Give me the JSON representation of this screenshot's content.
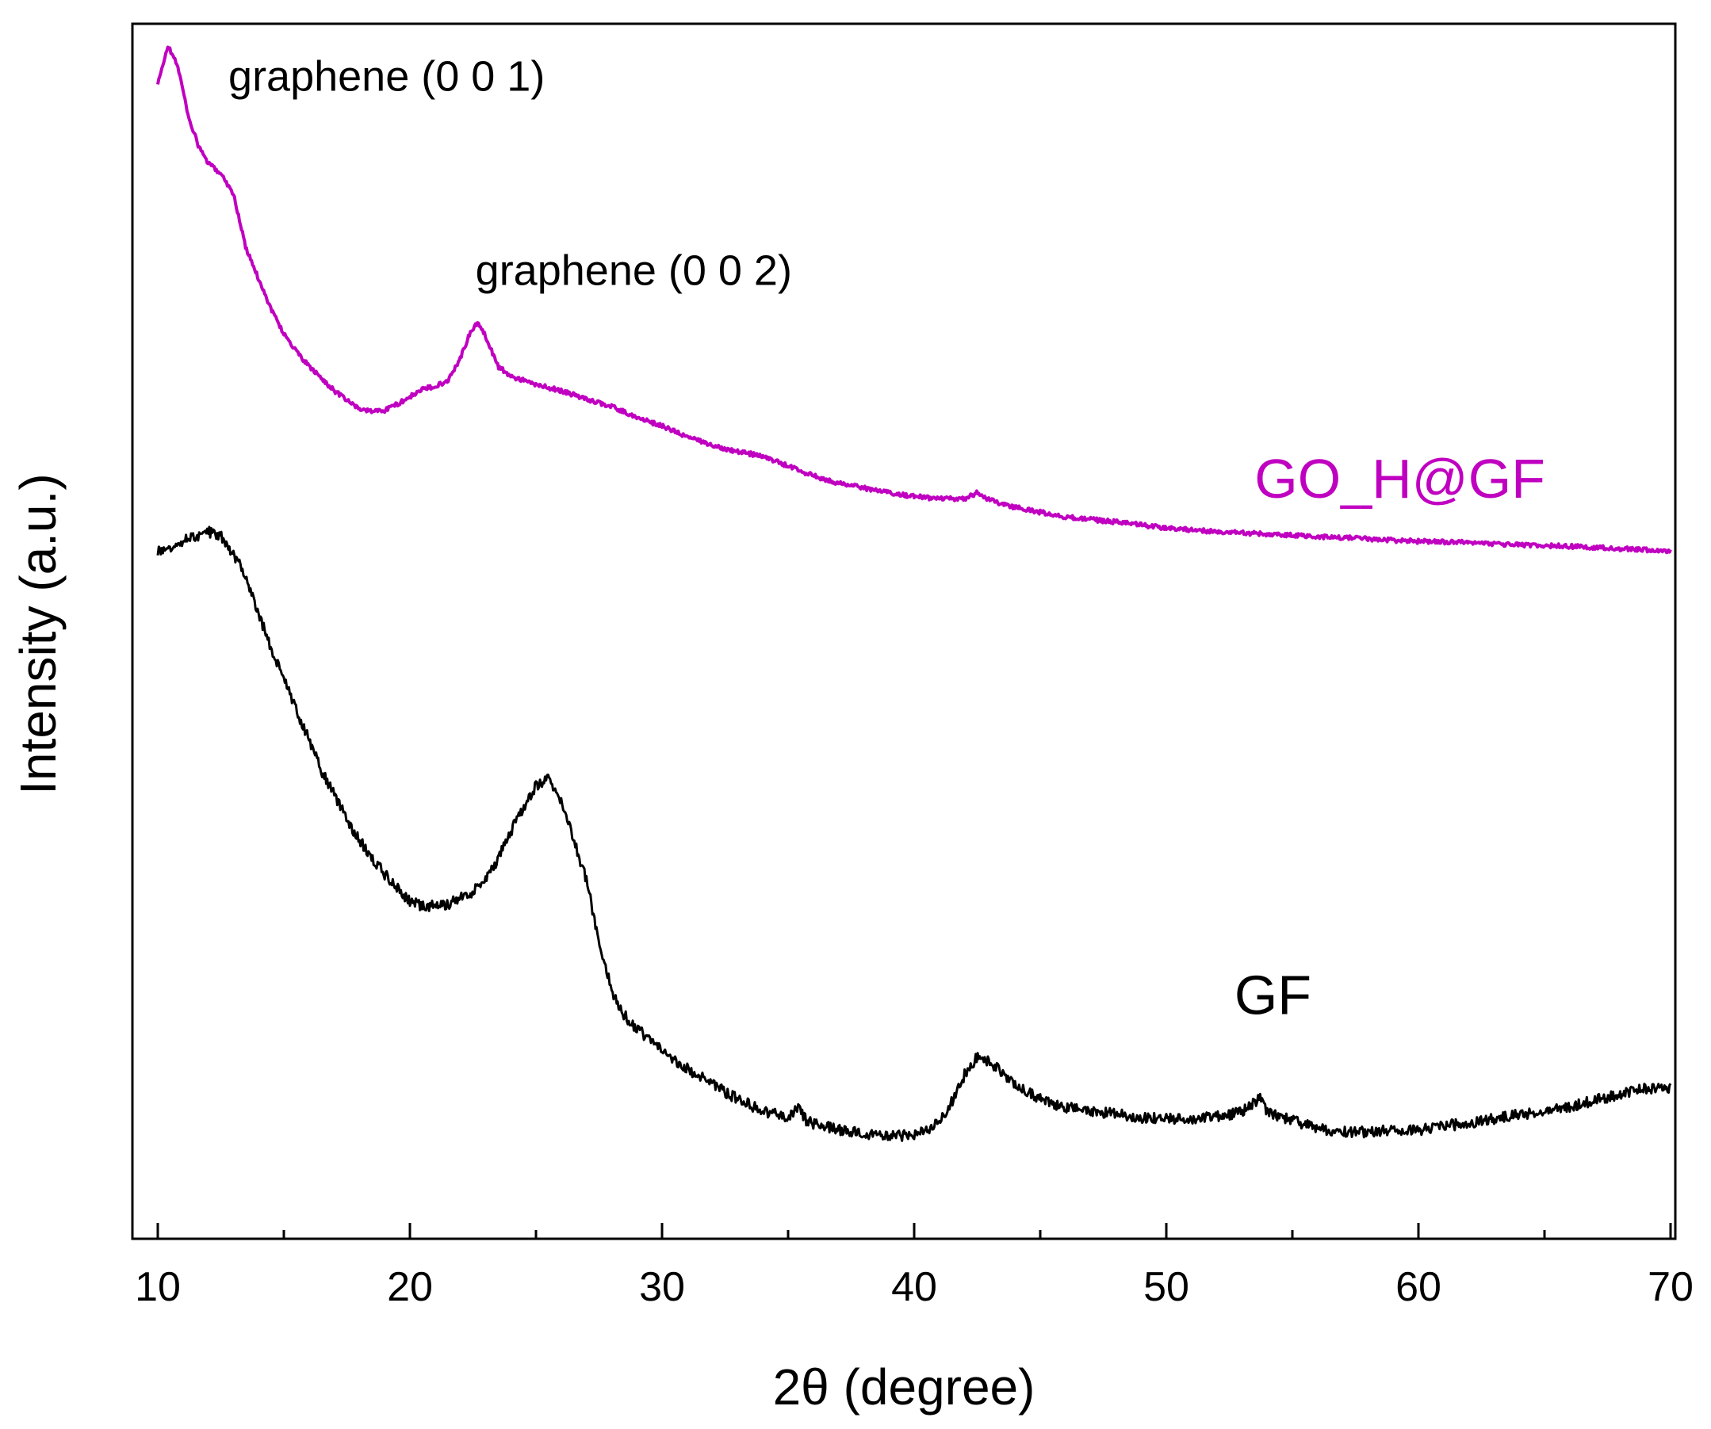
{
  "chart_data": {
    "type": "line",
    "title": "",
    "xlabel": "2θ (degree)",
    "ylabel": "Intensity (a.u.)",
    "xlim": [
      9,
      70
    ],
    "ylim": [
      0,
      100
    ],
    "x_ticks": [
      10,
      20,
      30,
      40,
      50,
      60,
      70
    ],
    "x_tick_labels": [
      "10",
      "20",
      "30",
      "40",
      "50",
      "60",
      "70"
    ],
    "y_tick_labels_shown": false,
    "grid": false,
    "annotations": [
      {
        "text": "graphene (0 0 1)",
        "x": 12.8,
        "y": 94.5
      },
      {
        "text": "graphene (0 0 2)",
        "x": 22.6,
        "y": 78.5
      }
    ],
    "series": [
      {
        "name": "GO_H@GF",
        "label": "GO_H@GF",
        "color": "#c000c0",
        "label_anchor": {
          "x": 53.5,
          "y": 61
        },
        "points": [
          [
            10.0,
            95.0
          ],
          [
            10.4,
            98.2
          ],
          [
            10.8,
            96.5
          ],
          [
            11.2,
            92.5
          ],
          [
            11.6,
            90.0
          ],
          [
            12.0,
            88.5
          ],
          [
            12.5,
            87.7
          ],
          [
            13.0,
            86.0
          ],
          [
            13.5,
            81.5
          ],
          [
            14.0,
            79.0
          ],
          [
            14.5,
            76.5
          ],
          [
            15.0,
            74.5
          ],
          [
            15.5,
            73.0
          ],
          [
            16.0,
            71.8
          ],
          [
            16.5,
            70.8
          ],
          [
            17.0,
            69.8
          ],
          [
            17.5,
            69.0
          ],
          [
            18.0,
            68.3
          ],
          [
            18.5,
            68.1
          ],
          [
            19.0,
            68.2
          ],
          [
            19.5,
            68.7
          ],
          [
            20.0,
            69.3
          ],
          [
            20.5,
            69.9
          ],
          [
            21.0,
            70.2
          ],
          [
            21.5,
            70.6
          ],
          [
            22.0,
            72.5
          ],
          [
            22.4,
            74.6
          ],
          [
            22.7,
            75.4
          ],
          [
            23.0,
            74.3
          ],
          [
            23.5,
            71.8
          ],
          [
            24.0,
            71.0
          ],
          [
            25.0,
            70.3
          ],
          [
            26.0,
            69.8
          ],
          [
            27.0,
            69.1
          ],
          [
            28.0,
            68.5
          ],
          [
            29.0,
            67.6
          ],
          [
            30.0,
            66.9
          ],
          [
            31.0,
            66.0
          ],
          [
            32.0,
            65.3
          ],
          [
            33.0,
            64.8
          ],
          [
            34.0,
            64.4
          ],
          [
            35.0,
            63.6
          ],
          [
            36.0,
            62.8
          ],
          [
            37.0,
            62.2
          ],
          [
            38.0,
            61.8
          ],
          [
            39.0,
            61.4
          ],
          [
            40.0,
            61.1
          ],
          [
            41.0,
            60.9
          ],
          [
            42.0,
            60.9
          ],
          [
            42.5,
            61.4
          ],
          [
            43.0,
            60.8
          ],
          [
            44.0,
            60.2
          ],
          [
            45.0,
            59.8
          ],
          [
            46.0,
            59.4
          ],
          [
            48.0,
            59.0
          ],
          [
            50.0,
            58.5
          ],
          [
            52.0,
            58.2
          ],
          [
            54.0,
            58.0
          ],
          [
            56.0,
            57.8
          ],
          [
            58.0,
            57.6
          ],
          [
            60.0,
            57.4
          ],
          [
            62.0,
            57.3
          ],
          [
            64.0,
            57.1
          ],
          [
            66.0,
            57.0
          ],
          [
            68.0,
            56.8
          ],
          [
            70.0,
            56.6
          ]
        ]
      },
      {
        "name": "GF",
        "label": "GF",
        "color": "#000000",
        "label_anchor": {
          "x": 52.7,
          "y": 18.5
        },
        "points": [
          [
            10.0,
            56.6
          ],
          [
            10.5,
            57.0
          ],
          [
            11.0,
            57.5
          ],
          [
            11.5,
            57.8
          ],
          [
            12.0,
            58.2
          ],
          [
            12.5,
            57.9
          ],
          [
            13.0,
            56.4
          ],
          [
            13.5,
            54.5
          ],
          [
            14.0,
            51.5
          ],
          [
            14.5,
            48.5
          ],
          [
            15.0,
            46.0
          ],
          [
            15.5,
            43.5
          ],
          [
            16.0,
            41.0
          ],
          [
            16.5,
            38.5
          ],
          [
            17.0,
            36.5
          ],
          [
            17.5,
            34.5
          ],
          [
            18.0,
            32.8
          ],
          [
            18.5,
            31.3
          ],
          [
            19.0,
            30.0
          ],
          [
            19.5,
            28.8
          ],
          [
            20.0,
            27.8
          ],
          [
            20.5,
            27.3
          ],
          [
            21.0,
            27.5
          ],
          [
            21.5,
            27.5
          ],
          [
            22.0,
            28.0
          ],
          [
            22.5,
            28.6
          ],
          [
            23.0,
            29.6
          ],
          [
            23.5,
            31.3
          ],
          [
            24.0,
            33.5
          ],
          [
            24.5,
            35.5
          ],
          [
            25.0,
            37.3
          ],
          [
            25.5,
            38.0
          ],
          [
            26.0,
            36.0
          ],
          [
            26.5,
            32.8
          ],
          [
            27.0,
            29.5
          ],
          [
            27.5,
            24.5
          ],
          [
            28.0,
            20.5
          ],
          [
            28.5,
            18.4
          ],
          [
            29.0,
            17.3
          ],
          [
            30.0,
            15.5
          ],
          [
            31.0,
            14.0
          ],
          [
            32.0,
            12.7
          ],
          [
            33.0,
            11.5
          ],
          [
            34.0,
            10.5
          ],
          [
            35.0,
            10.0
          ],
          [
            35.4,
            10.9
          ],
          [
            35.7,
            9.8
          ],
          [
            36.0,
            9.4
          ],
          [
            37.0,
            9.0
          ],
          [
            38.0,
            8.6
          ],
          [
            39.0,
            8.4
          ],
          [
            40.0,
            8.6
          ],
          [
            41.0,
            9.5
          ],
          [
            41.5,
            11.3
          ],
          [
            42.0,
            13.5
          ],
          [
            42.5,
            15.0
          ],
          [
            43.0,
            14.5
          ],
          [
            43.5,
            13.7
          ],
          [
            44.0,
            12.7
          ],
          [
            45.0,
            11.5
          ],
          [
            46.0,
            10.8
          ],
          [
            47.0,
            10.5
          ],
          [
            48.0,
            10.3
          ],
          [
            49.0,
            10.0
          ],
          [
            50.0,
            9.9
          ],
          [
            51.0,
            9.9
          ],
          [
            52.0,
            10.1
          ],
          [
            53.0,
            10.4
          ],
          [
            53.7,
            11.6
          ],
          [
            54.0,
            10.5
          ],
          [
            55.0,
            9.7
          ],
          [
            56.0,
            9.1
          ],
          [
            57.0,
            8.8
          ],
          [
            58.0,
            8.8
          ],
          [
            59.0,
            8.9
          ],
          [
            60.0,
            8.9
          ],
          [
            61.0,
            9.3
          ],
          [
            62.0,
            9.5
          ],
          [
            63.0,
            9.9
          ],
          [
            64.0,
            10.2
          ],
          [
            65.0,
            10.6
          ],
          [
            66.0,
            10.9
          ],
          [
            67.0,
            11.4
          ],
          [
            68.0,
            11.9
          ],
          [
            69.0,
            12.4
          ],
          [
            70.0,
            12.4
          ]
        ]
      }
    ]
  }
}
